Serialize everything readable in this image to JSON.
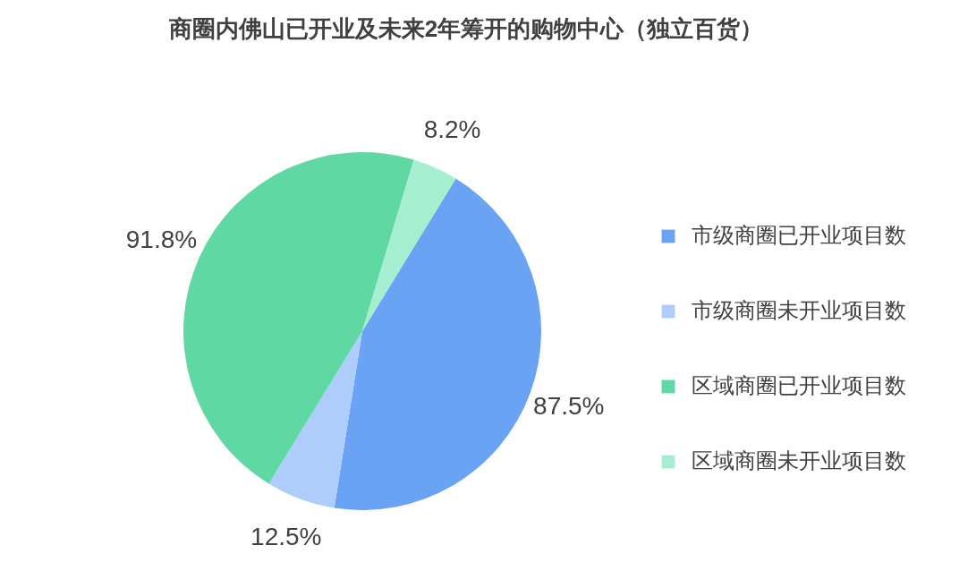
{
  "chart_data": {
    "type": "pie",
    "title": "商圈内佛山已开业及未来2年筹开的购物中心（独立百货）",
    "categories": [
      "市级商圈已开业项目数",
      "市级商圈未开业项目数",
      "区域商圈已开业项目数",
      "区域商圈未开业项目数"
    ],
    "values": [
      87.5,
      12.5,
      91.8,
      8.2
    ],
    "value_labels": [
      "87.5%",
      "12.5%",
      "91.8%",
      "8.2%"
    ],
    "colors": [
      "#6aa2f4",
      "#aecdfd",
      "#5fd8a4",
      "#a6eed0"
    ],
    "legend": "right"
  }
}
